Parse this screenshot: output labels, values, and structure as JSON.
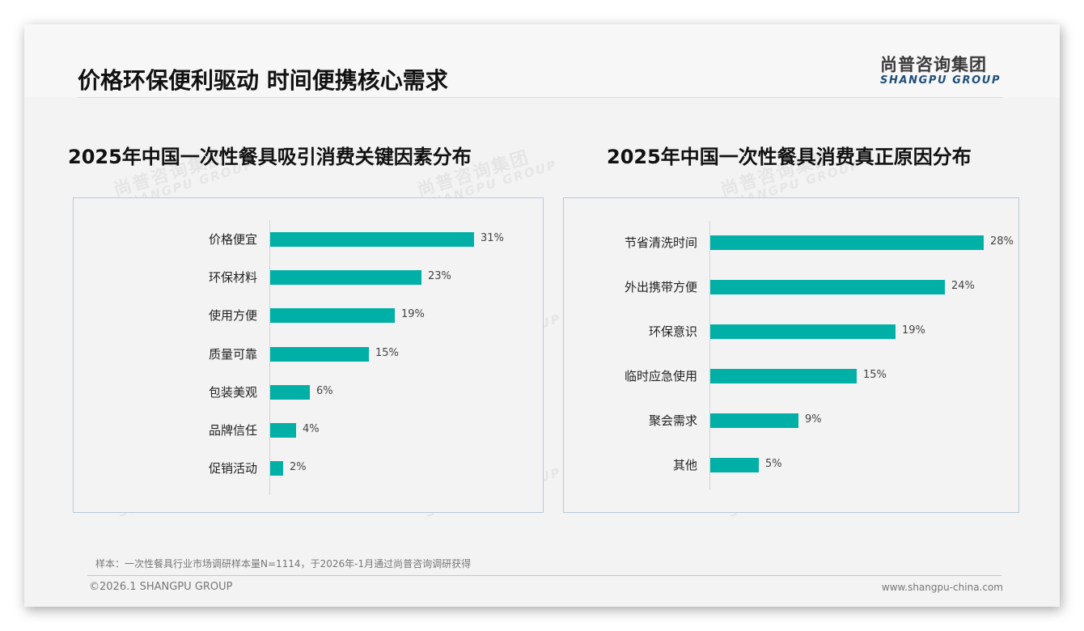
{
  "header": {
    "title": "价格环保便利驱动 时间便携核心需求",
    "logo_cn": "尚普咨询集团",
    "logo_en": "SHANGPU GROUP"
  },
  "watermark": {
    "cn": "尚普咨询集团",
    "en": "SHANGPU GROUP"
  },
  "colors": {
    "bar": "#00b0a6",
    "panel_border": "#b9c7d6",
    "logo_en": "#1f4e79"
  },
  "chart_data": [
    {
      "type": "bar",
      "orientation": "horizontal",
      "title": "2025年中国一次性餐具吸引消费关键因素分布",
      "categories": [
        "价格便宜",
        "环保材料",
        "使用方便",
        "质量可靠",
        "包装美观",
        "品牌信任",
        "促销活动"
      ],
      "values": [
        31,
        23,
        19,
        15,
        6,
        4,
        2
      ],
      "labels": [
        "31%",
        "23%",
        "19%",
        "15%",
        "6%",
        "4%",
        "2%"
      ],
      "unit": "%",
      "xlabel": "",
      "ylabel": "",
      "grid": false,
      "legend": false
    },
    {
      "type": "bar",
      "orientation": "horizontal",
      "title": "2025年中国一次性餐具消费真正原因分布",
      "categories": [
        "节省清洗时间",
        "外出携带方便",
        "环保意识",
        "临时应急使用",
        "聚会需求",
        "其他"
      ],
      "values": [
        28,
        24,
        19,
        15,
        9,
        5
      ],
      "labels": [
        "28%",
        "24%",
        "19%",
        "15%",
        "9%",
        "5%"
      ],
      "unit": "%",
      "xlabel": "",
      "ylabel": "",
      "grid": false,
      "legend": false
    }
  ],
  "footer": {
    "note": "样本：一次性餐具行业市场调研样本量N=1114，于2026年-1月通过尚普咨询调研获得",
    "copyright": "©2026.1 SHANGPU GROUP",
    "website": "www.shangpu-china.com"
  }
}
